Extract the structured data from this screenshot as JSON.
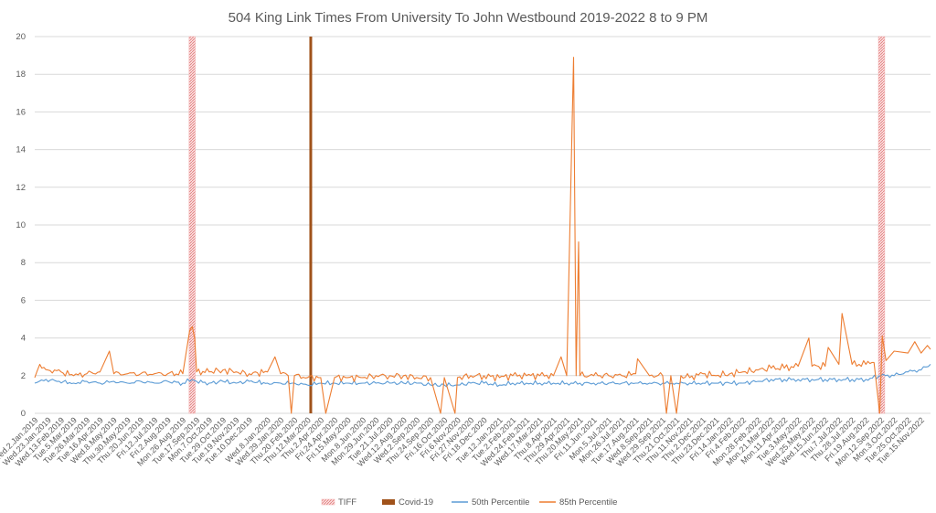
{
  "chart_data": {
    "type": "line",
    "title": "504 King Link Times From University To John Westbound 2019-2022 8 to 9 PM",
    "xlabel": "",
    "ylabel": "",
    "ylim": [
      0,
      20
    ],
    "y_ticks": [
      0,
      2,
      4,
      6,
      8,
      10,
      12,
      14,
      16,
      18,
      20
    ],
    "x_start": "2019-01-02",
    "x_end": "2022-11-30",
    "grid": true,
    "legend_position": "bottom",
    "x_tick_labels": [
      {
        "date": "2019-01-02",
        "label": "Wed.2.Jan.2019"
      },
      {
        "date": "2019-01-23",
        "label": "Wed.23.Jan.2019"
      },
      {
        "date": "2019-02-13",
        "label": "Wed.13.Feb.2019"
      },
      {
        "date": "2019-03-05",
        "label": "Tue.5.Mar.2019"
      },
      {
        "date": "2019-03-26",
        "label": "Tue.26.Mar.2019"
      },
      {
        "date": "2019-04-16",
        "label": "Tue.16.Apr.2019"
      },
      {
        "date": "2019-05-08",
        "label": "Wed.8.May.2019"
      },
      {
        "date": "2019-05-30",
        "label": "Thu.30.May.2019"
      },
      {
        "date": "2019-06-20",
        "label": "Thu.20.Jun.2019"
      },
      {
        "date": "2019-07-12",
        "label": "Fri.12.Jul.2019"
      },
      {
        "date": "2019-08-02",
        "label": "Fri.2.Aug.2019"
      },
      {
        "date": "2019-08-26",
        "label": "Mon.26.Aug.2019"
      },
      {
        "date": "2019-09-17",
        "label": "Tue.17.Sep.2019"
      },
      {
        "date": "2019-10-07",
        "label": "Mon.7.Oct.2019"
      },
      {
        "date": "2019-10-29",
        "label": "Tue.29.Oct.2019"
      },
      {
        "date": "2019-11-19",
        "label": "Tue.19.Nov.2019"
      },
      {
        "date": "2019-12-10",
        "label": "Tue.10.Dec.2019"
      },
      {
        "date": "2020-01-08",
        "label": "Wed.8.Jan.2020"
      },
      {
        "date": "2020-01-29",
        "label": "Wed.29.Jan.2020"
      },
      {
        "date": "2020-02-20",
        "label": "Thu.20.Feb.2020"
      },
      {
        "date": "2020-03-12",
        "label": "Thu.12.Mar.2020"
      },
      {
        "date": "2020-04-02",
        "label": "Thu.2.Apr.2020"
      },
      {
        "date": "2020-04-24",
        "label": "Fri.24.Apr.2020"
      },
      {
        "date": "2020-05-15",
        "label": "Fri.15.May.2020"
      },
      {
        "date": "2020-06-08",
        "label": "Mon.8.Jun.2020"
      },
      {
        "date": "2020-06-29",
        "label": "Mon.29.Jun.2020"
      },
      {
        "date": "2020-07-21",
        "label": "Tue.21.Jul.2020"
      },
      {
        "date": "2020-08-12",
        "label": "Wed.12.Aug.2020"
      },
      {
        "date": "2020-09-02",
        "label": "Wed.2.Sep.2020"
      },
      {
        "date": "2020-09-24",
        "label": "Thu.24.Sep.2020"
      },
      {
        "date": "2020-10-16",
        "label": "Fri.16.Oct.2020"
      },
      {
        "date": "2020-11-06",
        "label": "Fri.6.Nov.2020"
      },
      {
        "date": "2020-11-27",
        "label": "Fri.27.Nov.2020"
      },
      {
        "date": "2020-12-18",
        "label": "Fri.18.Dec.2020"
      },
      {
        "date": "2021-01-12",
        "label": "Tue.12.Jan.2021"
      },
      {
        "date": "2021-02-02",
        "label": "Tue.2.Feb.2021"
      },
      {
        "date": "2021-02-24",
        "label": "Wed.24.Feb.2021"
      },
      {
        "date": "2021-03-17",
        "label": "Wed.17.Mar.2021"
      },
      {
        "date": "2021-04-08",
        "label": "Thu.8.Apr.2021"
      },
      {
        "date": "2021-04-29",
        "label": "Thu.29.Apr.2021"
      },
      {
        "date": "2021-05-20",
        "label": "Thu.20.May.2021"
      },
      {
        "date": "2021-06-11",
        "label": "Fri.11.Jun.2021"
      },
      {
        "date": "2021-07-05",
        "label": "Mon.5.Jul.2021"
      },
      {
        "date": "2021-07-26",
        "label": "Mon.26.Jul.2021"
      },
      {
        "date": "2021-08-17",
        "label": "Tue.17.Aug.2021"
      },
      {
        "date": "2021-09-08",
        "label": "Wed.8.Sep.2021"
      },
      {
        "date": "2021-09-29",
        "label": "Wed.29.Sep.2021"
      },
      {
        "date": "2021-10-21",
        "label": "Thu.21.Oct.2021"
      },
      {
        "date": "2021-11-11",
        "label": "Thu.11.Nov.2021"
      },
      {
        "date": "2021-12-02",
        "label": "Thu.2.Dec.2021"
      },
      {
        "date": "2021-12-23",
        "label": "Thu.23.Dec.2021"
      },
      {
        "date": "2022-01-14",
        "label": "Fri.14.Jan.2022"
      },
      {
        "date": "2022-02-04",
        "label": "Fri.4.Feb.2022"
      },
      {
        "date": "2022-02-28",
        "label": "Mon.28.Feb.2022"
      },
      {
        "date": "2022-03-21",
        "label": "Mon.21.Mar.2022"
      },
      {
        "date": "2022-04-11",
        "label": "Mon.11.Apr.2022"
      },
      {
        "date": "2022-05-03",
        "label": "Tue.3.May.2022"
      },
      {
        "date": "2022-05-25",
        "label": "Wed.25.May.2022"
      },
      {
        "date": "2022-06-15",
        "label": "Wed.15.Jun.2022"
      },
      {
        "date": "2022-07-07",
        "label": "Thu.7.Jul.2022"
      },
      {
        "date": "2022-07-28",
        "label": "Thu.28.Jul.2022"
      },
      {
        "date": "2022-08-19",
        "label": "Fri.19.Aug.2022"
      },
      {
        "date": "2022-09-12",
        "label": "Mon.12.Sep.2022"
      },
      {
        "date": "2022-10-03",
        "label": "Mon.3.Oct.2022"
      },
      {
        "date": "2022-10-25",
        "label": "Tue.25.Oct.2022"
      },
      {
        "date": "2022-11-15",
        "label": "Tue.15.Nov.2022"
      }
    ],
    "bands": [
      {
        "name": "TIFF",
        "start": "2019-09-05",
        "end": "2019-09-15",
        "value": 20,
        "color": "#f4b8b8"
      },
      {
        "name": "TIFF",
        "start": "2022-09-08",
        "end": "2022-09-18",
        "value": 20,
        "color": "#f4b8b8"
      }
    ],
    "markers": [
      {
        "name": "Covid-19",
        "date": "2020-03-17",
        "value": 20,
        "color": "#a0521a"
      }
    ],
    "series": [
      {
        "name": "50th Percentile",
        "color": "#5b9bd5",
        "points": [
          [
            "2019-01-02",
            1.6
          ],
          [
            "2019-01-20",
            1.8
          ],
          [
            "2019-02-10",
            1.7
          ],
          [
            "2019-03-05",
            1.6
          ],
          [
            "2019-03-26",
            1.7
          ],
          [
            "2019-04-16",
            1.6
          ],
          [
            "2019-05-08",
            1.7
          ],
          [
            "2019-05-30",
            1.6
          ],
          [
            "2019-06-20",
            1.7
          ],
          [
            "2019-07-12",
            1.6
          ],
          [
            "2019-08-02",
            1.7
          ],
          [
            "2019-08-26",
            1.6
          ],
          [
            "2019-09-10",
            1.8
          ],
          [
            "2019-09-17",
            1.7
          ],
          [
            "2019-10-07",
            1.6
          ],
          [
            "2019-10-29",
            1.7
          ],
          [
            "2019-11-19",
            1.6
          ],
          [
            "2019-12-10",
            1.7
          ],
          [
            "2020-01-08",
            1.6
          ],
          [
            "2020-01-29",
            1.6
          ],
          [
            "2020-02-20",
            1.6
          ],
          [
            "2020-03-12",
            1.5
          ],
          [
            "2020-04-02",
            1.6
          ],
          [
            "2020-04-24",
            1.6
          ],
          [
            "2020-05-15",
            1.6
          ],
          [
            "2020-06-08",
            1.6
          ],
          [
            "2020-06-29",
            1.6
          ],
          [
            "2020-07-21",
            1.6
          ],
          [
            "2020-08-12",
            1.6
          ],
          [
            "2020-09-02",
            1.6
          ],
          [
            "2020-09-24",
            1.5
          ],
          [
            "2020-10-16",
            1.5
          ],
          [
            "2020-11-06",
            1.5
          ],
          [
            "2020-11-27",
            1.6
          ],
          [
            "2020-12-18",
            1.6
          ],
          [
            "2021-01-12",
            1.5
          ],
          [
            "2021-02-02",
            1.6
          ],
          [
            "2021-02-24",
            1.6
          ],
          [
            "2021-03-17",
            1.6
          ],
          [
            "2021-04-08",
            1.6
          ],
          [
            "2021-04-29",
            1.6
          ],
          [
            "2021-05-20",
            1.6
          ],
          [
            "2021-06-11",
            1.6
          ],
          [
            "2021-07-05",
            1.6
          ],
          [
            "2021-07-26",
            1.6
          ],
          [
            "2021-08-17",
            1.6
          ],
          [
            "2021-09-08",
            1.6
          ],
          [
            "2021-09-29",
            1.6
          ],
          [
            "2021-10-21",
            1.6
          ],
          [
            "2021-11-11",
            1.6
          ],
          [
            "2021-12-02",
            1.6
          ],
          [
            "2021-12-23",
            1.6
          ],
          [
            "2022-01-14",
            1.6
          ],
          [
            "2022-02-04",
            1.6
          ],
          [
            "2022-02-28",
            1.7
          ],
          [
            "2022-03-21",
            1.8
          ],
          [
            "2022-04-11",
            1.8
          ],
          [
            "2022-05-03",
            1.8
          ],
          [
            "2022-05-25",
            1.8
          ],
          [
            "2022-06-15",
            1.8
          ],
          [
            "2022-07-07",
            1.8
          ],
          [
            "2022-07-28",
            1.8
          ],
          [
            "2022-08-19",
            1.8
          ],
          [
            "2022-09-12",
            2.0
          ],
          [
            "2022-10-03",
            2.0
          ],
          [
            "2022-10-25",
            2.2
          ],
          [
            "2022-11-15",
            2.3
          ],
          [
            "2022-11-30",
            2.6
          ]
        ]
      },
      {
        "name": "85th Percentile",
        "color": "#ed7d31",
        "points": [
          [
            "2019-01-02",
            1.9
          ],
          [
            "2019-01-10",
            2.6
          ],
          [
            "2019-01-23",
            2.3
          ],
          [
            "2019-02-13",
            2.2
          ],
          [
            "2019-03-05",
            2.0
          ],
          [
            "2019-03-26",
            2.1
          ],
          [
            "2019-04-16",
            2.2
          ],
          [
            "2019-05-01",
            3.3
          ],
          [
            "2019-05-08",
            2.1
          ],
          [
            "2019-05-30",
            2.1
          ],
          [
            "2019-06-20",
            2.1
          ],
          [
            "2019-07-12",
            2.1
          ],
          [
            "2019-08-02",
            2.1
          ],
          [
            "2019-08-26",
            2.1
          ],
          [
            "2019-09-06",
            4.4
          ],
          [
            "2019-09-10",
            4.6
          ],
          [
            "2019-09-14",
            4.0
          ],
          [
            "2019-09-17",
            2.2
          ],
          [
            "2019-10-07",
            2.2
          ],
          [
            "2019-10-29",
            2.3
          ],
          [
            "2019-11-19",
            2.2
          ],
          [
            "2019-12-10",
            2.1
          ],
          [
            "2020-01-08",
            2.2
          ],
          [
            "2020-01-20",
            3.0
          ],
          [
            "2020-01-29",
            2.1
          ],
          [
            "2020-02-10",
            2.0
          ],
          [
            "2020-02-15",
            0
          ],
          [
            "2020-02-20",
            2.0
          ],
          [
            "2020-03-12",
            1.9
          ],
          [
            "2020-04-02",
            1.9
          ],
          [
            "2020-04-10",
            0
          ],
          [
            "2020-04-24",
            1.9
          ],
          [
            "2020-05-15",
            1.9
          ],
          [
            "2020-06-08",
            1.9
          ],
          [
            "2020-06-29",
            2.0
          ],
          [
            "2020-07-21",
            2.0
          ],
          [
            "2020-08-12",
            2.0
          ],
          [
            "2020-09-02",
            1.9
          ],
          [
            "2020-09-24",
            1.9
          ],
          [
            "2020-10-10",
            0
          ],
          [
            "2020-10-16",
            1.9
          ],
          [
            "2020-11-02",
            0
          ],
          [
            "2020-11-06",
            1.9
          ],
          [
            "2020-11-27",
            2.0
          ],
          [
            "2020-12-18",
            2.0
          ],
          [
            "2021-01-12",
            1.9
          ],
          [
            "2021-02-02",
            2.0
          ],
          [
            "2021-02-24",
            2.0
          ],
          [
            "2021-03-17",
            2.0
          ],
          [
            "2021-04-08",
            2.0
          ],
          [
            "2021-04-20",
            3.0
          ],
          [
            "2021-04-29",
            2.0
          ],
          [
            "2021-05-10",
            18.9
          ],
          [
            "2021-05-14",
            2.0
          ],
          [
            "2021-05-18",
            9.1
          ],
          [
            "2021-05-20",
            2.0
          ],
          [
            "2021-06-11",
            2.0
          ],
          [
            "2021-07-05",
            2.0
          ],
          [
            "2021-07-26",
            2.0
          ],
          [
            "2021-08-17",
            2.1
          ],
          [
            "2021-08-20",
            2.9
          ],
          [
            "2021-09-08",
            2.0
          ],
          [
            "2021-09-29",
            2.0
          ],
          [
            "2021-10-05",
            0
          ],
          [
            "2021-10-12",
            2.0
          ],
          [
            "2021-10-21",
            0
          ],
          [
            "2021-10-28",
            2.0
          ],
          [
            "2021-11-11",
            1.9
          ],
          [
            "2021-12-02",
            2.1
          ],
          [
            "2021-12-23",
            2.0
          ],
          [
            "2022-01-14",
            2.1
          ],
          [
            "2022-02-04",
            2.2
          ],
          [
            "2022-02-28",
            2.3
          ],
          [
            "2022-03-21",
            2.4
          ],
          [
            "2022-04-11",
            2.4
          ],
          [
            "2022-05-03",
            2.5
          ],
          [
            "2022-05-20",
            4.0
          ],
          [
            "2022-05-25",
            2.5
          ],
          [
            "2022-06-15",
            2.5
          ],
          [
            "2022-06-20",
            3.5
          ],
          [
            "2022-07-07",
            2.6
          ],
          [
            "2022-07-12",
            5.3
          ],
          [
            "2022-07-28",
            2.6
          ],
          [
            "2022-08-19",
            2.6
          ],
          [
            "2022-09-01",
            2.7
          ],
          [
            "2022-09-10",
            0
          ],
          [
            "2022-09-14",
            4.1
          ],
          [
            "2022-09-20",
            2.8
          ],
          [
            "2022-10-03",
            3.3
          ],
          [
            "2022-10-25",
            3.2
          ],
          [
            "2022-11-05",
            3.8
          ],
          [
            "2022-11-15",
            3.2
          ],
          [
            "2022-11-25",
            3.6
          ],
          [
            "2022-11-30",
            3.4
          ]
        ]
      }
    ],
    "legend": [
      {
        "label": "TIFF",
        "kind": "band",
        "color": "#f4b8b8"
      },
      {
        "label": "Covid-19",
        "kind": "marker",
        "color": "#a0521a"
      },
      {
        "label": "50th Percentile",
        "kind": "line",
        "color": "#5b9bd5"
      },
      {
        "label": "85th Percentile",
        "kind": "line",
        "color": "#ed7d31"
      }
    ]
  }
}
